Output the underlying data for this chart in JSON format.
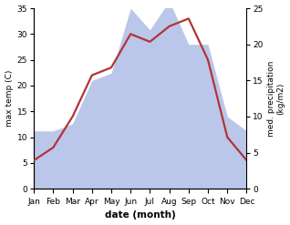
{
  "months": [
    "Jan",
    "Feb",
    "Mar",
    "Apr",
    "May",
    "Jun",
    "Jul",
    "Aug",
    "Sep",
    "Oct",
    "Nov",
    "Dec"
  ],
  "temperature": [
    5.5,
    8.0,
    14.0,
    22.0,
    23.5,
    30.0,
    28.5,
    31.5,
    33.0,
    25.0,
    10.0,
    5.5
  ],
  "precipitation": [
    8,
    8,
    9,
    15,
    16,
    25,
    22,
    26,
    20,
    20,
    10,
    8
  ],
  "temp_ylim": [
    0,
    35
  ],
  "precip_ylim": [
    0,
    25
  ],
  "temp_color": "#b03535",
  "precip_color": "#b0bce8",
  "xlabel": "date (month)",
  "ylabel_left": "max temp (C)",
  "ylabel_right": "med. precipitation\n(kg/m2)",
  "temp_yticks": [
    0,
    5,
    10,
    15,
    20,
    25,
    30,
    35
  ],
  "precip_yticks": [
    0,
    5,
    10,
    15,
    20,
    25
  ],
  "linewidth": 1.6,
  "font_size_ticks": 6.5,
  "font_size_labels": 6.5,
  "font_size_xlabel": 7.5
}
